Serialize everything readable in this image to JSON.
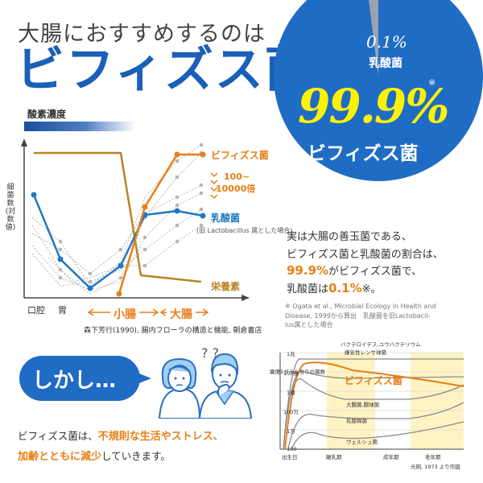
{
  "headline": {
    "line1": "大腸におすすめするのは",
    "line2": "ビフィズス菌"
  },
  "pie": {
    "small_value": "0.1%",
    "small_label": "乳酸菌",
    "asterisk": "※",
    "big_value": "99.9%",
    "big_label": "ビフィズス菌",
    "colors": {
      "main": "#1f6cc5",
      "small": "#9aa3ad"
    },
    "share_percent": {
      "bifidobacteria": 99.9,
      "lactobacillus": 0.1
    }
  },
  "chart1": {
    "oxygen_label": "酸素濃度",
    "yaxis_label": "細菌数(対数値)",
    "legend": {
      "bifidobacteria": "ビフィズス菌",
      "multiplier_line1": "100~",
      "multiplier_line2": "10000倍",
      "lactobacillus": "乳酸菌",
      "old_name_note": "(旧 Lactobacillus 属とした場合)",
      "nutrients": "栄養素"
    },
    "x_labels": {
      "oral": "口腔",
      "stomach": "胃",
      "small_intestine": "小腸",
      "large_intestine": "大腸"
    },
    "citation": "森下芳行(1990), 腸内フローラの構造と機能, 朝倉書店",
    "colors": {
      "bifidobacteria": "#e87e16",
      "lactobacillus": "#1f78c1",
      "nutrients": "#b98426",
      "others": "#aaaaaa"
    }
  },
  "description": {
    "line1": "実は大腸の善玉菌である、",
    "line2": "ビフィズス菌と乳酸菌の割合は、",
    "line3_hl": "99.9%",
    "line3_rest": "がビフィズス菌で、",
    "line4_pre": "乳酸菌は",
    "line4_hl": "0.1%",
    "line4_rest": "※。",
    "note1": "※ Ogata et al., Microbial Ecology in Health and",
    "note2": "Disease, 1999から算出　乳酸菌を旧Lactobacil-",
    "note3": "lus属とした場合"
  },
  "however": {
    "text": "しかし…",
    "question_marks": "? ?"
  },
  "bottom": {
    "line1_pre": "ビフィズス菌は、",
    "line1_hl": "不規則な生活やストレス、",
    "line2_hl": "加齢とともに減少",
    "line2_rest": "していきます。"
  },
  "chart2": {
    "y_title": "糞便1グラム当りの菌数",
    "y_ticks": [
      "1兆",
      "100億",
      "1億",
      "100万",
      "1万",
      "100"
    ],
    "top_label1": "バクテロイデス,ユウバクテリウム",
    "top_label2": "嫌気性レンサ球菌",
    "bifi_label": "ビフィズス菌",
    "label_ecoli": "大腸菌,腸球菌",
    "label_lacto": "乳酸桿菌",
    "label_welch": "ウェルシュ菌",
    "x_labels": [
      "出生日",
      "離乳期",
      "成年期",
      "老年期"
    ],
    "citation": "光岡, 1973 より作図"
  }
}
